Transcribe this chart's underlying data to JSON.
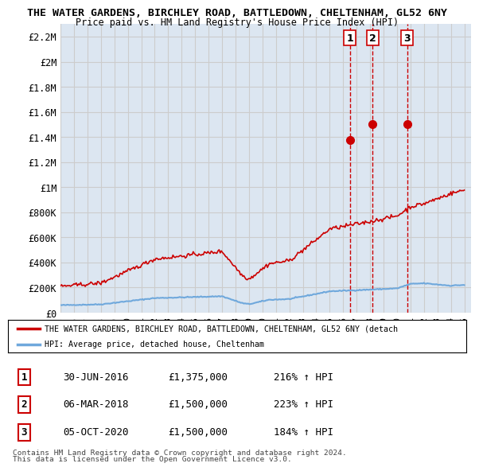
{
  "title1": "THE WATER GARDENS, BIRCHLEY ROAD, BATTLEDOWN, CHELTENHAM, GL52 6NY",
  "title2": "Price paid vs. HM Land Registry's House Price Index (HPI)",
  "ylim": [
    0,
    2300000
  ],
  "yticks": [
    0,
    200000,
    400000,
    600000,
    800000,
    1000000,
    1200000,
    1400000,
    1600000,
    1800000,
    2000000,
    2200000
  ],
  "ytick_labels": [
    "£0",
    "£200K",
    "£400K",
    "£600K",
    "£800K",
    "£1M",
    "£1.2M",
    "£1.4M",
    "£1.6M",
    "£1.8M",
    "£2M",
    "£2.2M"
  ],
  "xlim_start": 1995.0,
  "xlim_end": 2025.5,
  "xtick_years": [
    1995,
    1996,
    1997,
    1998,
    1999,
    2000,
    2001,
    2002,
    2003,
    2004,
    2005,
    2006,
    2007,
    2008,
    2009,
    2010,
    2011,
    2012,
    2013,
    2014,
    2015,
    2016,
    2017,
    2018,
    2019,
    2020,
    2021,
    2022,
    2023,
    2024,
    2025
  ],
  "hpi_color": "#6fa8dc",
  "price_color": "#cc0000",
  "vline_color": "#cc0000",
  "grid_color": "#cccccc",
  "bg_color": "#dce6f1",
  "sale_dates": [
    2016.5,
    2018.18,
    2020.76
  ],
  "sale_prices": [
    1375000,
    1500000,
    1500000
  ],
  "sale_labels": [
    "1",
    "2",
    "3"
  ],
  "legend_line1": "THE WATER GARDENS, BIRCHLEY ROAD, BATTLEDOWN, CHELTENHAM, GL52 6NY (detach",
  "legend_line2": "HPI: Average price, detached house, Cheltenham",
  "table_data": [
    [
      "1",
      "30-JUN-2016",
      "£1,375,000",
      "216% ↑ HPI"
    ],
    [
      "2",
      "06-MAR-2018",
      "£1,500,000",
      "223% ↑ HPI"
    ],
    [
      "3",
      "05-OCT-2020",
      "£1,500,000",
      "184% ↑ HPI"
    ]
  ],
  "footnote1": "Contains HM Land Registry data © Crown copyright and database right 2024.",
  "footnote2": "This data is licensed under the Open Government Licence v3.0."
}
